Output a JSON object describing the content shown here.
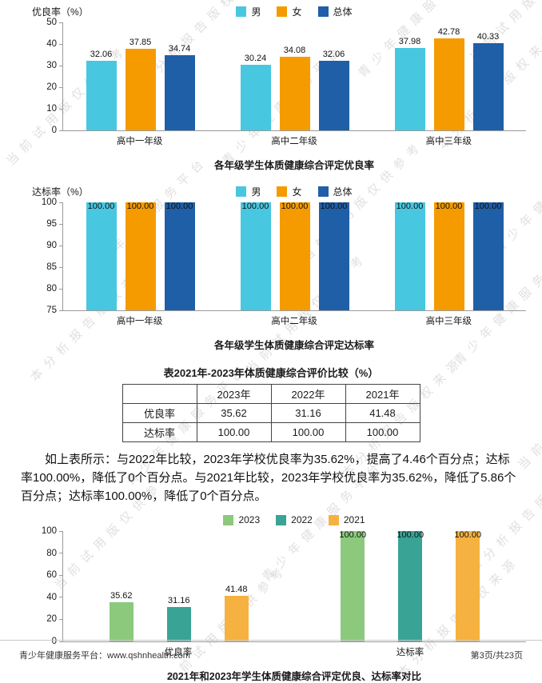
{
  "watermark": {
    "phrases": [
      "当前试用版仅供参考",
      "本分析报告版权来源",
      "青少年健康服务平台"
    ]
  },
  "chart_data": [
    {
      "type": "bar",
      "title": "各年级学生体质健康综合评定优良率",
      "ylabel": "优良率（%）",
      "ylim": [
        0,
        50
      ],
      "yticks": [
        "50",
        "40",
        "30",
        "20",
        "10",
        "0"
      ],
      "grid": false,
      "legend_position": "top-center",
      "categories": [
        "高中一年级",
        "高中二年级",
        "高中三年级"
      ],
      "series": [
        {
          "name": "男",
          "color": "#48c7e0",
          "values": [
            32.06,
            30.24,
            37.98
          ],
          "labels": [
            "32.06",
            "30.24",
            "37.98"
          ]
        },
        {
          "name": "女",
          "color": "#f59b00",
          "values": [
            37.85,
            34.08,
            42.78
          ],
          "labels": [
            "37.85",
            "34.08",
            "42.78"
          ]
        },
        {
          "name": "总体",
          "color": "#1f5fa8",
          "values": [
            34.74,
            32.06,
            40.33
          ],
          "labels": [
            "34.74",
            "32.06",
            "40.33"
          ]
        }
      ]
    },
    {
      "type": "bar",
      "title": "各年级学生体质健康综合评定达标率",
      "ylabel": "达标率（%）",
      "ylim": [
        75,
        100
      ],
      "yticks": [
        "100",
        "95",
        "90",
        "85",
        "80",
        "75"
      ],
      "grid": false,
      "legend_position": "top-center",
      "categories": [
        "高中一年级",
        "高中二年级",
        "高中三年级"
      ],
      "series": [
        {
          "name": "男",
          "color": "#48c7e0",
          "values": [
            100,
            100,
            100
          ],
          "labels": [
            "100.00",
            "100.00",
            "100.00"
          ]
        },
        {
          "name": "女",
          "color": "#f59b00",
          "values": [
            100,
            100,
            100
          ],
          "labels": [
            "100.00",
            "100.00",
            "100.00"
          ]
        },
        {
          "name": "总体",
          "color": "#1f5fa8",
          "values": [
            100,
            100,
            100
          ],
          "labels": [
            "100.00",
            "100.00",
            "100.00"
          ]
        }
      ]
    },
    {
      "type": "bar",
      "title": "2021年和2023年学生体质健康综合评定优良、达标率对比",
      "ylabel": "",
      "ylim": [
        0,
        100
      ],
      "yticks": [
        "100",
        "80",
        "60",
        "40",
        "20",
        "0"
      ],
      "grid": false,
      "legend_position": "top-center",
      "categories": [
        "优良率",
        "达标率"
      ],
      "series": [
        {
          "name": "2023",
          "color": "#8cc97d",
          "values": [
            35.62,
            100
          ],
          "labels": [
            "35.62",
            "100.00"
          ]
        },
        {
          "name": "2022",
          "color": "#39a396",
          "values": [
            31.16,
            100
          ],
          "labels": [
            "31.16",
            "100.00"
          ]
        },
        {
          "name": "2021",
          "color": "#f5b240",
          "values": [
            41.48,
            100
          ],
          "labels": [
            "41.48",
            "100.00"
          ]
        }
      ]
    }
  ],
  "table": {
    "title": "表2021年-2023年体质健康综合评价比较（%）",
    "columns": [
      "",
      "2023年",
      "2022年",
      "2021年"
    ],
    "rows": [
      {
        "label": "优良率",
        "values": [
          "35.62",
          "31.16",
          "41.48"
        ]
      },
      {
        "label": "达标率",
        "values": [
          "100.00",
          "100.00",
          "100.00"
        ]
      }
    ]
  },
  "paragraph": "如上表所示：与2022年比较，2023年学校优良率为35.62%，提高了4.46个百分点；达标率100.00%，降低了0个百分点。与2021年比较，2023年学校优良率为35.62%，降低了5.86个百分点；达标率100.00%，降低了0个百分点。",
  "footer": {
    "left": "青少年健康服务平台：www.qshnhealth.com",
    "right": "第3页/共23页"
  }
}
